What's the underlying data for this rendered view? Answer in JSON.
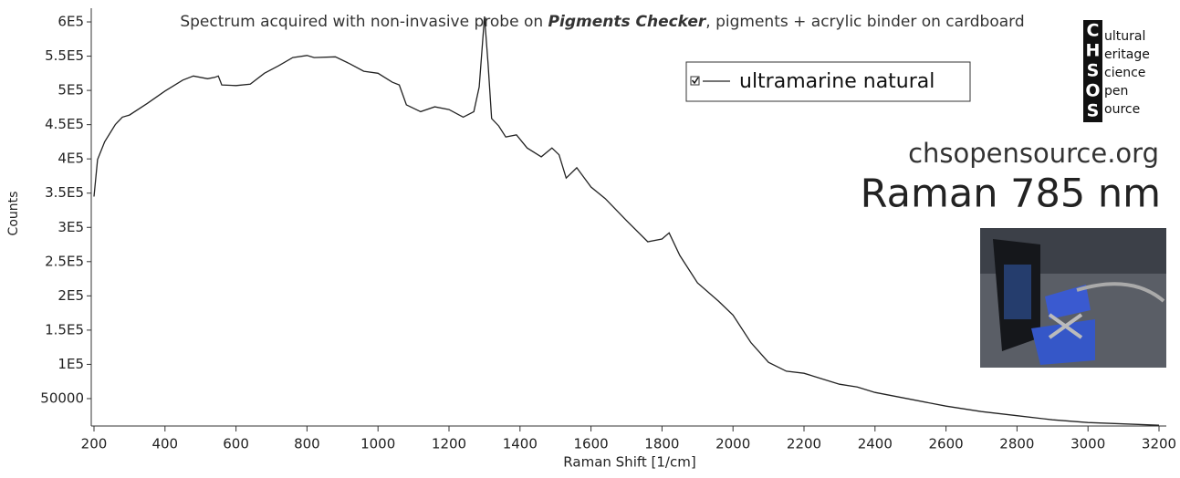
{
  "chart_data": {
    "type": "line",
    "title": [
      "Spectrum acquired with non-invasive probe on ",
      "Pigments Checker",
      ", pigments + acrylic binder on cardboard"
    ],
    "x_label": "Raman Shift [1/cm]",
    "y_label": "Counts",
    "xlim": [
      200,
      3200
    ],
    "xticks": [
      200,
      400,
      600,
      800,
      1000,
      1200,
      1400,
      1600,
      1800,
      2000,
      2200,
      2400,
      2600,
      2800,
      3000,
      3200
    ],
    "ylim": [
      10000,
      620000
    ],
    "yticks": [
      50000,
      {
        "value": 100000,
        "label": "1E5"
      },
      {
        "value": 150000,
        "label": "1.5E5"
      },
      {
        "value": 200000,
        "label": "2E5"
      },
      {
        "value": 250000,
        "label": "2.5E5"
      },
      {
        "value": 300000,
        "label": "3E5"
      },
      {
        "value": 350000,
        "label": "3.5E5"
      },
      {
        "value": 400000,
        "label": "4E5"
      },
      {
        "value": 450000,
        "label": "4.5E5"
      },
      {
        "value": 500000,
        "label": "5E5"
      },
      {
        "value": 550000,
        "label": "5.5E5"
      },
      {
        "value": 600000,
        "label": "6E5"
      }
    ],
    "legend": "top-right",
    "series": [
      {
        "name": "ultramarine natural",
        "color": "#222222",
        "x": [
          200,
          210,
          230,
          260,
          280,
          300,
          350,
          400,
          450,
          480,
          520,
          540,
          550,
          560,
          600,
          640,
          680,
          720,
          760,
          800,
          820,
          880,
          920,
          960,
          1000,
          1040,
          1060,
          1080,
          1120,
          1160,
          1200,
          1240,
          1270,
          1285,
          1300,
          1310,
          1320,
          1340,
          1360,
          1390,
          1420,
          1460,
          1490,
          1510,
          1530,
          1560,
          1600,
          1640,
          1700,
          1760,
          1800,
          1820,
          1850,
          1900,
          1960,
          2000,
          2050,
          2100,
          2150,
          2200,
          2250,
          2300,
          2350,
          2400,
          2500,
          2600,
          2700,
          2800,
          2900,
          3000,
          3100,
          3200
        ],
        "values": [
          345000,
          399000,
          425000,
          450000,
          461000,
          464000,
          481000,
          499000,
          515000,
          521000,
          517000,
          519000,
          521000,
          508000,
          507000,
          509000,
          525000,
          536000,
          548000,
          551000,
          548000,
          549000,
          539000,
          528000,
          525000,
          512000,
          508000,
          479000,
          469000,
          476000,
          472000,
          461000,
          469000,
          505000,
          608000,
          539000,
          459000,
          448000,
          432000,
          435000,
          416000,
          403000,
          416000,
          406000,
          372000,
          387000,
          359000,
          342000,
          310000,
          279000,
          283000,
          292000,
          259000,
          219000,
          192000,
          172000,
          132000,
          103000,
          90000,
          87000,
          79000,
          71000,
          67000,
          59000,
          49000,
          39000,
          31000,
          25000,
          19000,
          15000,
          13000,
          11000
        ]
      }
    ]
  },
  "branding": {
    "letters": [
      "C",
      "H",
      "S",
      "O",
      "S"
    ],
    "words": [
      "ultural",
      "eritage",
      "cience",
      "pen",
      "ource"
    ],
    "website": "chsopensource.org",
    "method": "Raman 785 nm"
  }
}
